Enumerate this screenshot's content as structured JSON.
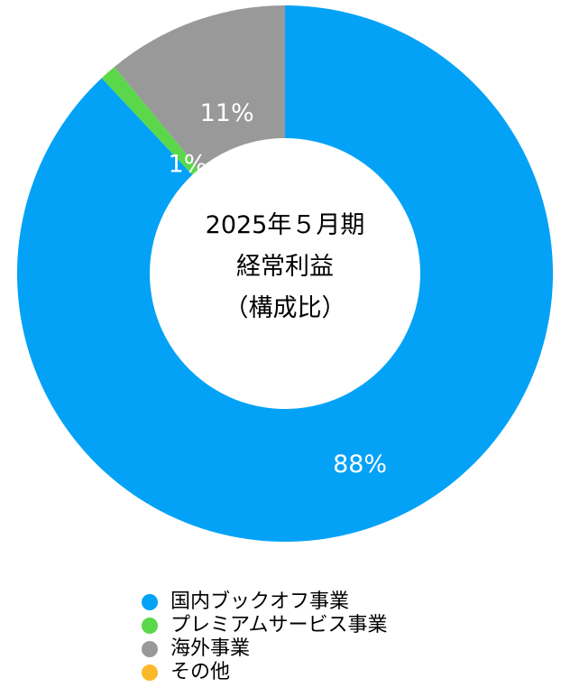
{
  "chart_data": {
    "type": "pie",
    "donut": true,
    "center_title": [
      "2025年５月期",
      "経常利益",
      "（構成比）"
    ],
    "categories": [
      "国内ブックオフ事業",
      "プレミアムサービス事業",
      "海外事業",
      "その他"
    ],
    "values": [
      88,
      1,
      11,
      0
    ],
    "labels": [
      "88%",
      "1%",
      "11%",
      ""
    ],
    "colors": [
      "#03A2F6",
      "#5AD84A",
      "#999999",
      "#FBB829"
    ],
    "start": "12 o'clock",
    "direction": "clockwise",
    "legend_position": "bottom"
  }
}
